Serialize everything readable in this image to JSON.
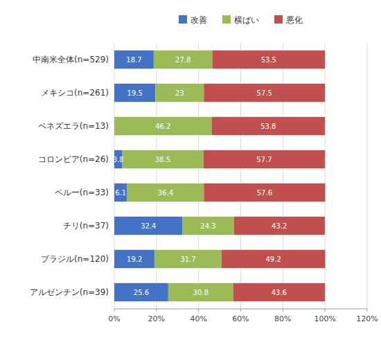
{
  "chart_data": {
    "type": "bar",
    "orientation": "horizontal",
    "stacked": true,
    "categories": [
      "中南米全体(n=529)",
      "メキシコ(n=261)",
      "ベネズエラ(n=13)",
      "コロンビア(n=26)",
      "ペルー(n=33)",
      "チリ(n=37)",
      "ブラジル(n=120)",
      "アルゼンチン(n=39)"
    ],
    "series": [
      {
        "name": "改善",
        "color": "#4472C4",
        "values": [
          18.7,
          19.5,
          0.0,
          3.8,
          6.1,
          32.4,
          19.2,
          25.6
        ],
        "value_labels": [
          "18.7",
          "19.5",
          null,
          "3.8",
          "6.1",
          "32.4",
          "19.2",
          "25.6"
        ]
      },
      {
        "name": "横ばい",
        "color": "#9BBB59",
        "values": [
          27.8,
          23.0,
          46.2,
          38.5,
          36.4,
          24.3,
          31.7,
          30.8
        ]
      },
      {
        "name": "悪化",
        "color": "#C0504D",
        "values": [
          53.5,
          57.5,
          53.8,
          57.7,
          57.6,
          43.2,
          49.2,
          43.6
        ]
      }
    ],
    "xlim": [
      0,
      120
    ],
    "xticks": [
      {
        "value": 0,
        "label": "0%"
      },
      {
        "value": 20,
        "label": "20%"
      },
      {
        "value": 40,
        "label": "40%"
      },
      {
        "value": 60,
        "label": "60%"
      },
      {
        "value": 80,
        "label": "80%"
      },
      {
        "value": 100,
        "label": "100%"
      },
      {
        "value": 120,
        "label": "120%"
      }
    ],
    "grid": true,
    "legend": "top",
    "data_labels": true
  }
}
